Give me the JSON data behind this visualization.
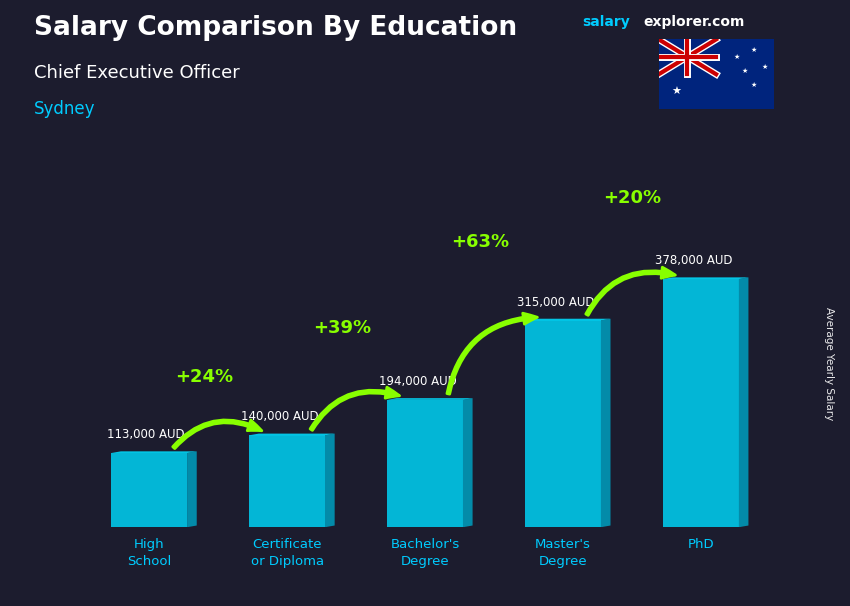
{
  "title": "Salary Comparison By Education",
  "subtitle": "Chief Executive Officer",
  "city": "Sydney",
  "ylabel": "Average Yearly Salary",
  "site_salary": "salary",
  "site_explorer": "explorer.com",
  "categories": [
    "High\nSchool",
    "Certificate\nor Diploma",
    "Bachelor's\nDegree",
    "Master's\nDegree",
    "PhD"
  ],
  "values": [
    113000,
    140000,
    194000,
    315000,
    378000
  ],
  "value_labels": [
    "113,000 AUD",
    "140,000 AUD",
    "194,000 AUD",
    "315,000 AUD",
    "378,000 AUD"
  ],
  "pct_labels": [
    "+24%",
    "+39%",
    "+63%",
    "+20%"
  ],
  "bar_face_color": "#00ccee",
  "bar_left_color": "#009bbb",
  "bar_right_color": "#00e8ff",
  "bar_top_color": "#00ddff",
  "arrow_color": "#88ff00",
  "title_color": "#ffffff",
  "subtitle_color": "#ffffff",
  "city_color": "#00ccff",
  "value_label_color": "#ffffff",
  "pct_color": "#88ff00",
  "bg_color": "#1c1c2e",
  "ylim_max": 480000,
  "bar_width": 0.55,
  "bar_gap": 0.45
}
